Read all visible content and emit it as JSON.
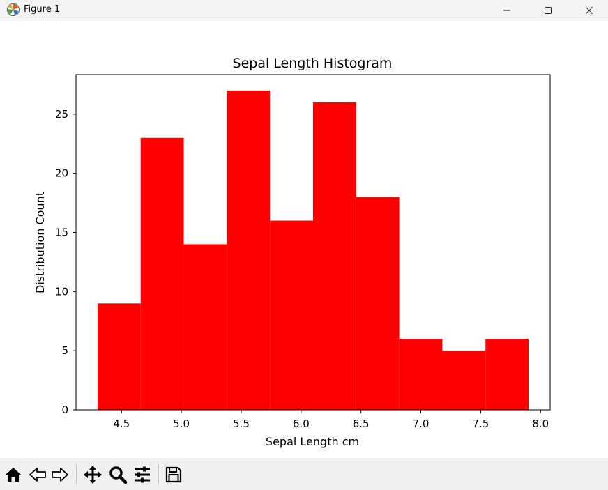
{
  "window": {
    "title": "Figure 1",
    "icon": "matplotlib-icon",
    "controls": [
      "minimize-icon",
      "maximize-icon",
      "close-icon"
    ]
  },
  "toolbar": {
    "buttons": [
      "home-icon",
      "back-icon",
      "forward-icon",
      "pan-icon",
      "zoom-icon",
      "configure-subplots-icon",
      "save-icon"
    ]
  },
  "chart_data": {
    "type": "bar",
    "title": "Sepal Length Histogram",
    "xlabel": "Sepal Length cm",
    "ylabel": "Distribution Count",
    "bin_edges": [
      4.3,
      4.66,
      5.02,
      5.38,
      5.74,
      6.1,
      6.46,
      6.82,
      7.18,
      7.54,
      7.9
    ],
    "values": [
      9,
      23,
      14,
      27,
      16,
      26,
      18,
      6,
      5,
      6
    ],
    "xlim": [
      4.12,
      8.08
    ],
    "ylim": [
      0,
      28.35
    ],
    "xticks": [
      "4.5",
      "5.0",
      "5.5",
      "6.0",
      "6.5",
      "7.0",
      "7.5",
      "8.0"
    ],
    "yticks": [
      "0",
      "5",
      "10",
      "15",
      "20",
      "25"
    ],
    "bar_color": "#ff0000",
    "grid": false,
    "legend": false
  }
}
